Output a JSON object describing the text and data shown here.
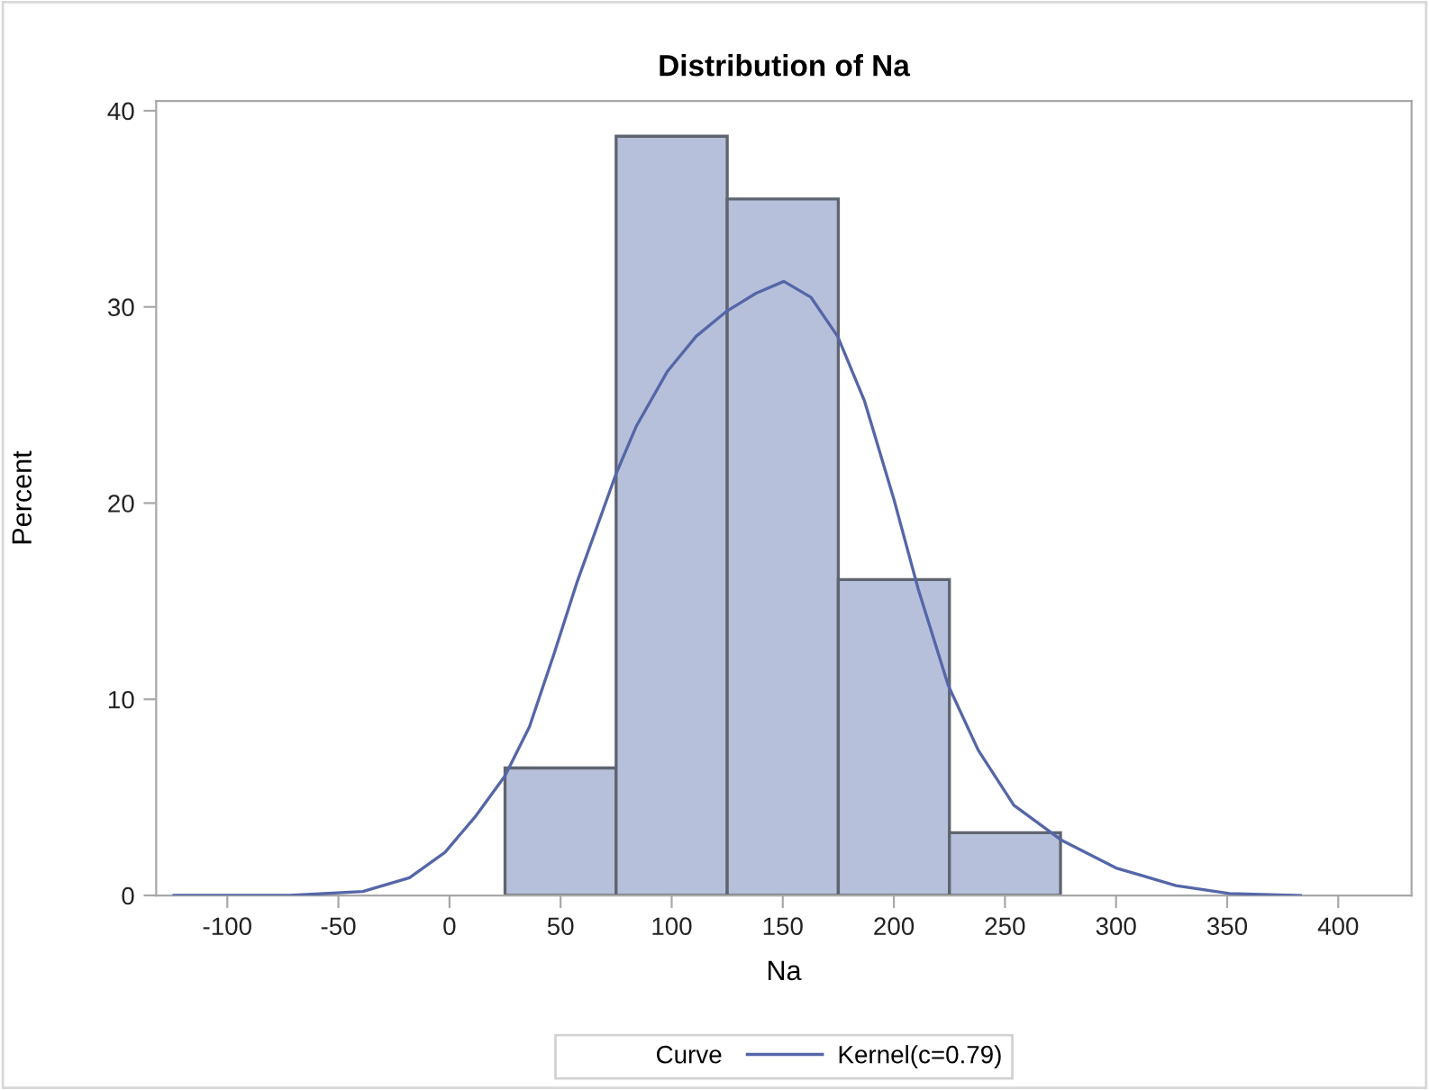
{
  "chart_data": {
    "type": "histogram",
    "title": "Distribution of Na",
    "xlabel": "Na",
    "ylabel": "Percent",
    "legend_title": "Curve",
    "bins": [
      25,
      75,
      125,
      175,
      225,
      275
    ],
    "values": [
      6.5,
      38.7,
      35.5,
      16.1,
      3.2
    ],
    "color": "#b7c0da",
    "series": [
      {
        "type": "line",
        "name": "Kernel(c=0.79)",
        "color": "#5566a8",
        "x": [
          -124,
          -72,
          -39,
          -18,
          -2,
          11.5,
          25,
          36,
          47,
          57.5,
          68,
          75,
          84,
          98,
          111,
          125,
          138,
          150.5,
          162.6,
          174.7,
          186.8,
          200,
          211,
          224.5,
          238,
          254,
          275.7,
          300,
          327,
          351,
          383
        ],
        "values": [
          0,
          0,
          0.2,
          0.9,
          2.2,
          4.0,
          6.1,
          8.6,
          12.3,
          16.0,
          19.3,
          21.5,
          23.9,
          26.7,
          28.5,
          29.8,
          30.7,
          31.3,
          30.5,
          28.5,
          25.2,
          20.2,
          15.6,
          10.7,
          7.4,
          4.6,
          2.8,
          1.4,
          0.5,
          0.1,
          0
        ]
      }
    ],
    "xlim": [
      -132,
      433
    ],
    "ylim": [
      0,
      40.5
    ],
    "xticks": [
      -100,
      -50,
      0,
      50,
      100,
      150,
      200,
      250,
      300,
      350,
      400
    ],
    "yticks": [
      0,
      10,
      20,
      30,
      40
    ],
    "grid": false,
    "legend": "bottom"
  }
}
